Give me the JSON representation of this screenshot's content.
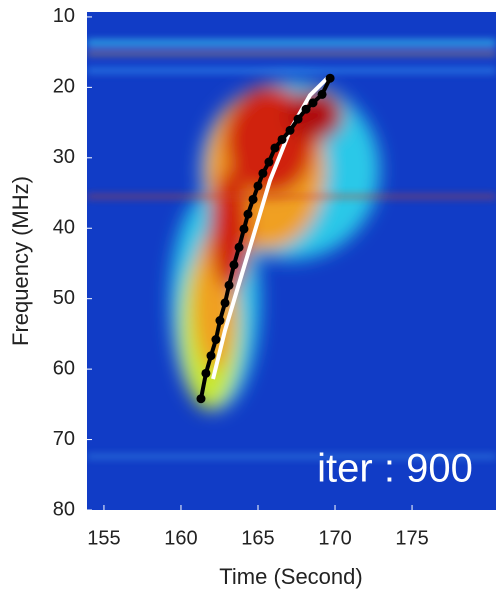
{
  "chart_data": {
    "type": "line",
    "x_label": "Time (Second)",
    "y_label": "Frequency (MHz)",
    "annotation": "iter : 900",
    "xlim": [
      153.9,
      180.45
    ],
    "ylim": [
      9.3,
      80
    ],
    "y_reversed": true,
    "xticks": [
      155,
      160,
      165,
      170,
      175
    ],
    "yticks": [
      10,
      20,
      30,
      40,
      50,
      60,
      70,
      80
    ],
    "series": [
      {
        "color": "#ffffff",
        "markers": false,
        "x": [
          162.08,
          162.86,
          163.83,
          164.81,
          165.78,
          167.08,
          168.38,
          169.68
        ],
        "values": [
          61.4,
          54.5,
          47.4,
          40.3,
          33.2,
          26.1,
          21.1,
          18.3
        ]
      },
      {
        "color": "#000000",
        "markers": true,
        "x": [
          161.3,
          161.62,
          161.95,
          162.27,
          162.53,
          162.86,
          163.12,
          163.44,
          163.77,
          164.09,
          164.35,
          164.68,
          165.0,
          165.32,
          165.71,
          166.1,
          166.56,
          167.08,
          167.6,
          168.12,
          168.57,
          169.16,
          169.68
        ],
        "values": [
          64.2,
          60.6,
          58.1,
          55.8,
          53.1,
          50.6,
          48.1,
          45.2,
          42.7,
          40.1,
          38.0,
          35.9,
          34.0,
          32.2,
          30.6,
          28.6,
          27.4,
          26.1,
          24.5,
          23.1,
          22.2,
          21.0,
          18.7
        ]
      }
    ]
  }
}
